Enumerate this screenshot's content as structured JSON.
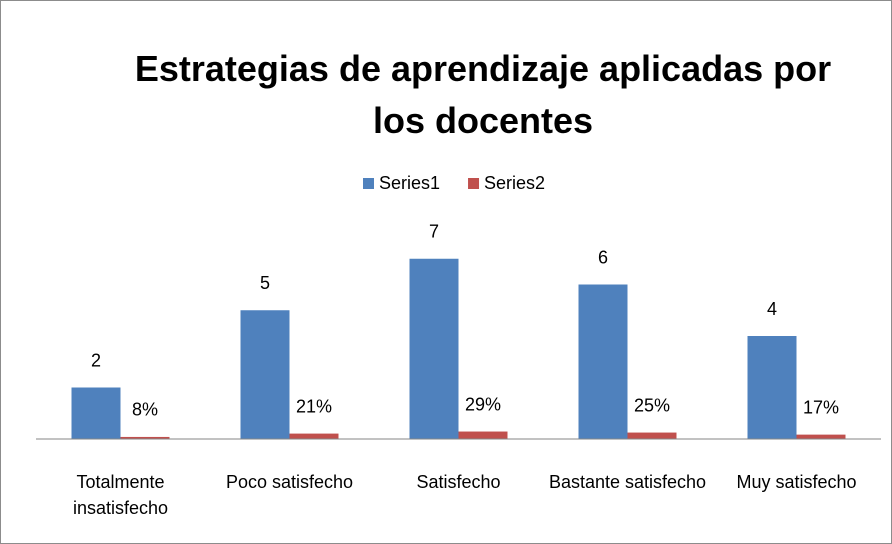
{
  "chart_data": {
    "type": "bar",
    "title": "Estrategias de aprendizaje aplicadas por los docentes",
    "categories": [
      "Totalmente insatisfecho",
      "Poco satisfecho",
      "Satisfecho",
      "Bastante satisfecho",
      "Muy satisfecho"
    ],
    "series": [
      {
        "name": "Series1",
        "color": "#4f81bd",
        "values": [
          2,
          5,
          7,
          6,
          4
        ]
      },
      {
        "name": "Series2",
        "color": "#c0504d",
        "values": [
          0.08,
          0.21,
          0.29,
          0.25,
          0.17
        ],
        "value_labels": [
          "8%",
          "21%",
          "29%",
          "25%",
          "17%"
        ]
      }
    ],
    "ylim": [
      0,
      8
    ],
    "legend": "top"
  }
}
